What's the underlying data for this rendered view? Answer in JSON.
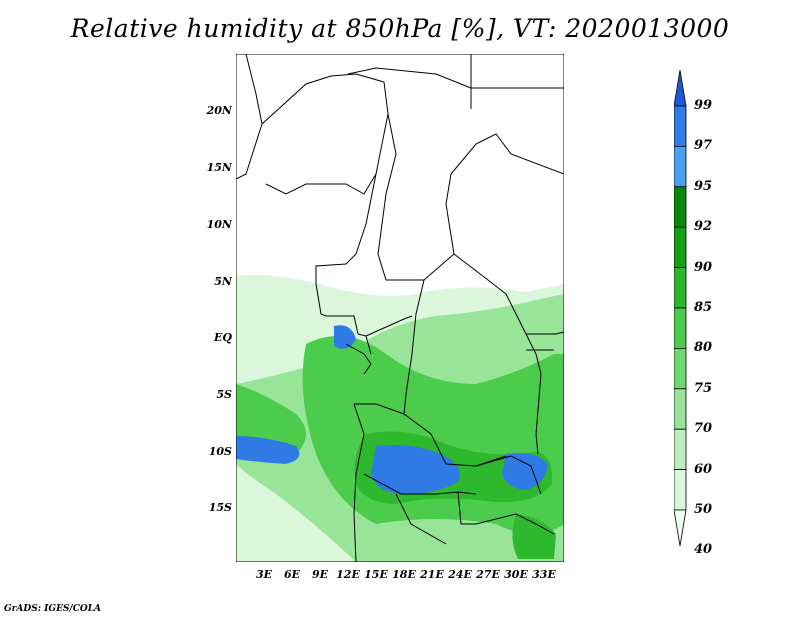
{
  "title": "Relative humidity at 850hPa [%], VT: 2020013000",
  "footer": "GrADS: IGES/COLA",
  "lat_labels": [
    "20N",
    "15N",
    "10N",
    "5N",
    "EQ",
    "5S",
    "10S",
    "15S"
  ],
  "lon_labels": [
    "3E",
    "6E",
    "9E",
    "12E",
    "15E",
    "18E",
    "21E",
    "24E",
    "27E",
    "30E",
    "33E"
  ],
  "colorbar": {
    "labels": [
      "99",
      "97",
      "95",
      "92",
      "90",
      "85",
      "80",
      "75",
      "70",
      "60",
      "50",
      "40"
    ],
    "colors": [
      "#1e5ad6",
      "#2f7ae4",
      "#4aa0f0",
      "#0a8a0a",
      "#16a016",
      "#2eb82e",
      "#4ccc4c",
      "#70d870",
      "#98e498",
      "#bdeebd",
      "#dcf6dc",
      "#f2fcf2"
    ]
  }
}
